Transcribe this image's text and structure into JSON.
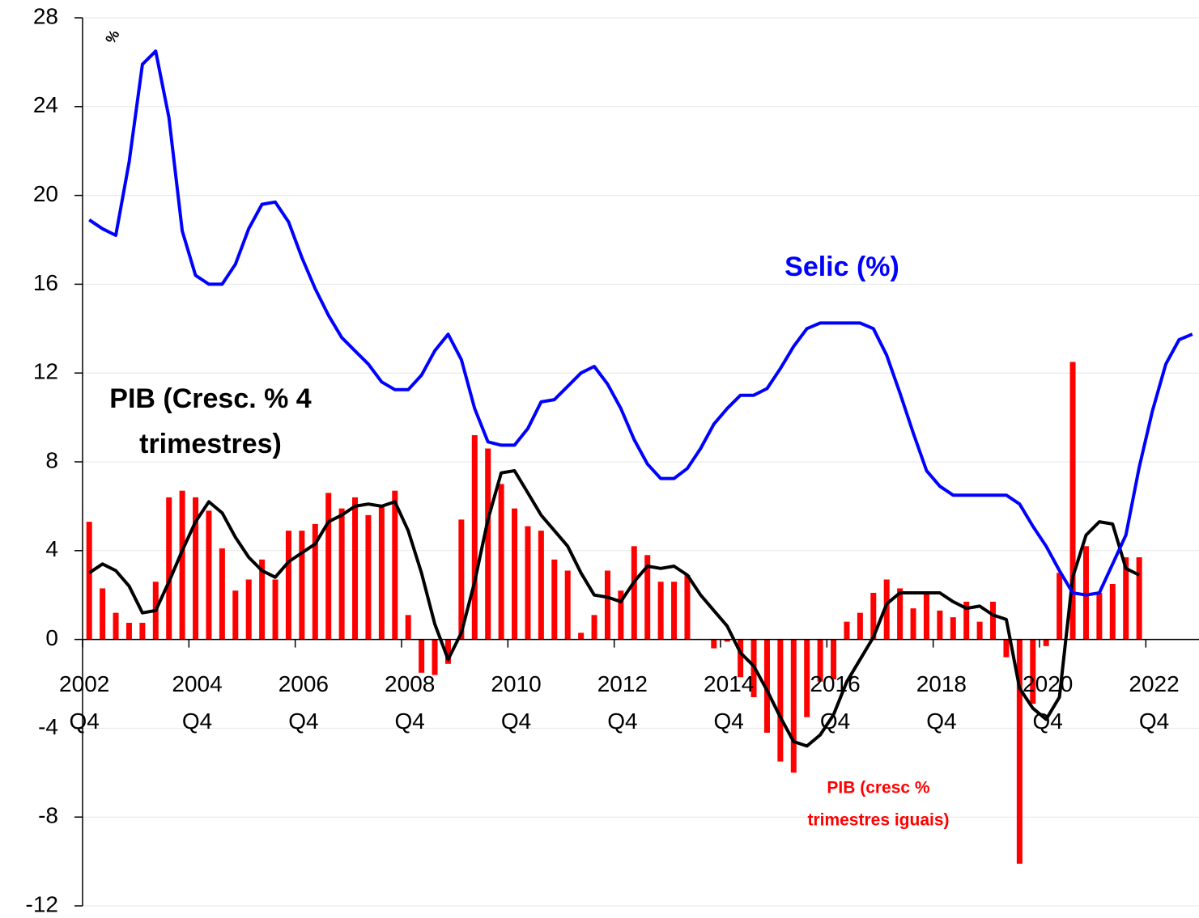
{
  "chart_data": {
    "type": "bar",
    "ylim": [
      -12,
      28
    ],
    "yticks": [
      -12,
      -8,
      -4,
      0,
      4,
      8,
      12,
      16,
      20,
      24,
      28
    ],
    "grid": true,
    "y_unit_label": "%",
    "categories": [
      "2002 Q4",
      null,
      null,
      null,
      null,
      null,
      null,
      null,
      "2004 Q4",
      null,
      null,
      null,
      null,
      null,
      null,
      null,
      "2006 Q4",
      null,
      null,
      null,
      null,
      null,
      null,
      null,
      "2008 Q4",
      null,
      null,
      null,
      null,
      null,
      null,
      null,
      "2010 Q4",
      null,
      null,
      null,
      null,
      null,
      null,
      null,
      "2012 Q4",
      null,
      null,
      null,
      null,
      null,
      null,
      null,
      "2014 Q4",
      null,
      null,
      null,
      null,
      null,
      null,
      null,
      "2016 Q4",
      null,
      null,
      null,
      null,
      null,
      null,
      null,
      "2018 Q4",
      null,
      null,
      null,
      null,
      null,
      null,
      null,
      "2020 Q4",
      null,
      null,
      null,
      null,
      null,
      null,
      null,
      "2022 Q4",
      null,
      null,
      null
    ],
    "series": [
      {
        "type": "bar",
        "color": "#ff0000",
        "values": [
          5.3,
          2.3,
          1.2,
          0.75,
          0.75,
          2.6,
          6.4,
          6.7,
          6.4,
          5.8,
          4.1,
          2.2,
          2.7,
          3.6,
          2.7,
          4.9,
          4.9,
          5.2,
          6.6,
          5.9,
          6.4,
          5.6,
          6.0,
          6.7,
          1.1,
          -1.5,
          -1.6,
          -1.1,
          5.4,
          9.2,
          8.6,
          7.0,
          5.9,
          5.1,
          4.9,
          3.6,
          3.1,
          0.3,
          1.1,
          3.1,
          2.2,
          4.2,
          3.8,
          2.6,
          2.6,
          2.9,
          0.0,
          -0.4,
          -0.1,
          -1.7,
          -2.6,
          -4.2,
          -5.5,
          -6.0,
          -3.5,
          -1.9,
          -1.8,
          0.8,
          1.2,
          2.1,
          2.7,
          2.3,
          1.4,
          2.1,
          1.3,
          1.0,
          1.7,
          0.8,
          1.7,
          -0.8,
          -10.1,
          -2.9,
          -0.3,
          3.0,
          12.5,
          4.2,
          2.1,
          2.5,
          3.7,
          3.7,
          null,
          null,
          null,
          null
        ]
      },
      {
        "type": "line",
        "color": "#000000",
        "values": [
          3.0,
          3.4,
          3.1,
          2.4,
          1.2,
          1.3,
          2.6,
          4.0,
          5.3,
          6.2,
          5.7,
          4.6,
          3.7,
          3.1,
          2.8,
          3.5,
          3.9,
          4.3,
          5.3,
          5.6,
          6.0,
          6.1,
          6.0,
          6.2,
          4.9,
          3.0,
          0.7,
          -0.9,
          0.3,
          2.6,
          5.4,
          7.5,
          7.6,
          6.6,
          5.6,
          4.9,
          4.2,
          3.0,
          2.0,
          1.9,
          1.7,
          2.6,
          3.3,
          3.2,
          3.3,
          2.9,
          2.0,
          1.3,
          0.6,
          -0.6,
          -1.2,
          -2.3,
          -3.5,
          -4.6,
          -4.8,
          -4.3,
          -3.4,
          -1.9,
          -0.9,
          0.1,
          1.6,
          2.1,
          2.1,
          2.1,
          2.1,
          1.7,
          1.4,
          1.5,
          1.1,
          0.9,
          -2.2,
          -3.1,
          -3.6,
          -2.6,
          2.8,
          4.7,
          5.3,
          5.2,
          3.2,
          2.9,
          null,
          null,
          null,
          null
        ]
      },
      {
        "type": "line",
        "color": "#0000ff",
        "values": [
          18.9,
          18.5,
          18.2,
          21.5,
          25.9,
          26.5,
          23.5,
          18.4,
          16.4,
          16.0,
          16.0,
          16.9,
          18.5,
          19.6,
          19.7,
          18.8,
          17.2,
          15.8,
          14.6,
          13.6,
          13.0,
          12.4,
          11.6,
          11.25,
          11.25,
          11.9,
          13.0,
          13.75,
          12.6,
          10.4,
          8.9,
          8.75,
          8.75,
          9.5,
          10.7,
          10.8,
          11.4,
          12.0,
          12.3,
          11.5,
          10.4,
          9.0,
          7.9,
          7.25,
          7.25,
          7.7,
          8.6,
          9.7,
          10.4,
          11.0,
          11.0,
          11.3,
          12.2,
          13.2,
          14.0,
          14.25,
          14.25,
          14.25,
          14.25,
          14.0,
          12.8,
          11.1,
          9.3,
          7.6,
          6.9,
          6.5,
          6.5,
          6.5,
          6.5,
          6.5,
          6.1,
          5.1,
          4.2,
          3.1,
          2.1,
          2.0,
          2.1,
          3.4,
          4.7,
          7.75,
          10.3,
          12.4,
          13.5,
          13.75
        ]
      }
    ],
    "annotations": [
      {
        "lines": [
          "Selic (%)"
        ],
        "color": "#0000ff"
      },
      {
        "lines": [
          "PIB (Cresc. % 4",
          "trimestres)"
        ],
        "color": "#000000"
      },
      {
        "lines": [
          "PIB (cresc %",
          "trimestres iguais)"
        ],
        "color": "#ff0000"
      }
    ]
  }
}
